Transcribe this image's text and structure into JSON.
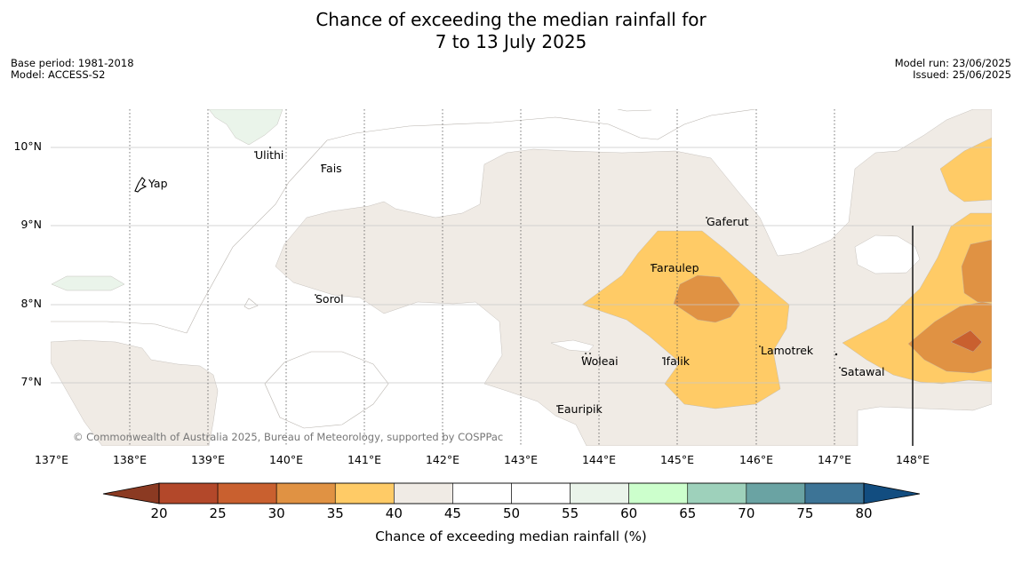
{
  "title_line1": "Chance of exceeding the median rainfall for",
  "title_line2": "7 to 13 July 2025",
  "base_period": "Base period: 1981-2018",
  "model": "Model: ACCESS-S2",
  "model_run": "Model run: 23/06/2025",
  "issued": "Issued: 25/06/2025",
  "copyright": "© Commonwealth of Australia 2025, Bureau of Meteorology, supported by COSPPac",
  "longitude_labels": [
    "137°E",
    "138°E",
    "139°E",
    "140°E",
    "141°E",
    "142°E",
    "143°E",
    "144°E",
    "145°E",
    "146°E",
    "147°E",
    "148°E"
  ],
  "latitude_labels": [
    "10°N",
    "9°N",
    "8°N",
    "7°N"
  ],
  "places": [
    {
      "name": "Ulithi"
    },
    {
      "name": "Fais"
    },
    {
      "name": "Yap"
    },
    {
      "name": "Gaferut"
    },
    {
      "name": "Faraulep"
    },
    {
      "name": "Sorol"
    },
    {
      "name": "Woleai"
    },
    {
      "name": "Ifalik"
    },
    {
      "name": "Lamotrek"
    },
    {
      "name": "Satawal"
    },
    {
      "name": "Eauripik"
    }
  ],
  "colorbar": {
    "label": "Chance of exceeding median rainfall (%)",
    "ticks": [
      "20",
      "25",
      "30",
      "35",
      "40",
      "45",
      "50",
      "55",
      "60",
      "65",
      "70",
      "75",
      "80"
    ],
    "low_extend_color": "#8b3a22",
    "high_extend_color": "#124d80",
    "colors": [
      "#b3482a",
      "#c9602f",
      "#e09243",
      "#ffcb66",
      "#f0ebe5",
      "#ffffff",
      "#ffffff",
      "#eaf4ea",
      "#ccffcc",
      "#9ed1bb",
      "#6aa3a3",
      "#3d7496"
    ]
  },
  "colors": {
    "band_35_40": "#ffcb66",
    "band_30_35": "#e09243",
    "band_25_30": "#c9602f",
    "band_40_45": "#f0ebe5",
    "band_55_60": "#eaf4ea"
  }
}
